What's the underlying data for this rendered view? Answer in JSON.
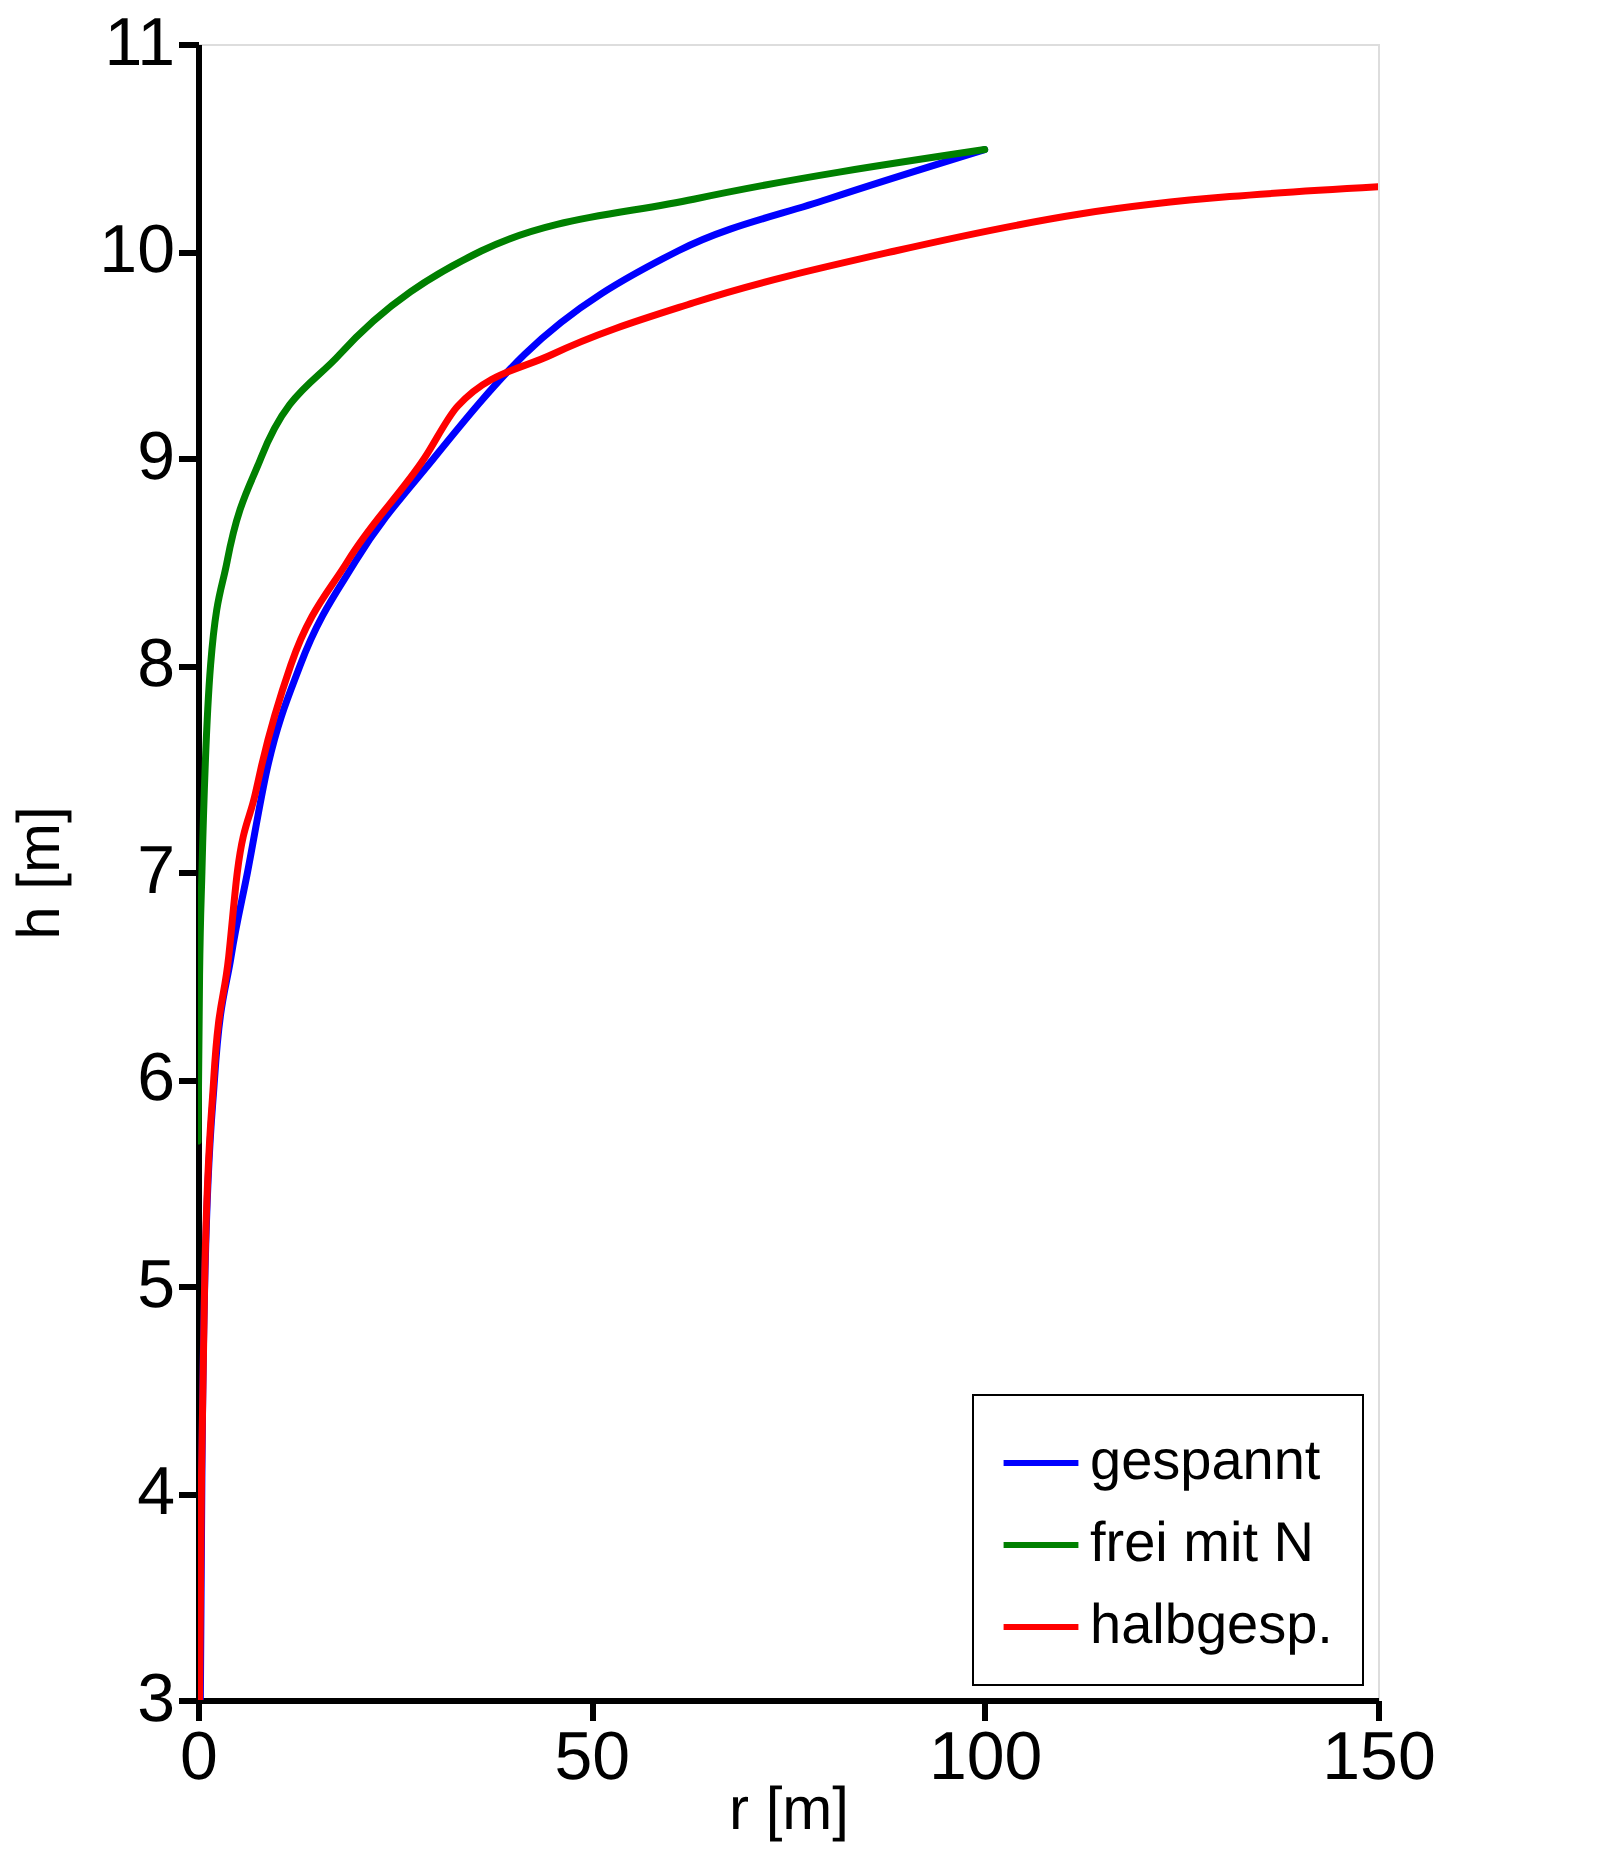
{
  "chart_data": {
    "type": "line",
    "xlabel": "r [m]",
    "ylabel": "h [m]",
    "xlim": [
      0,
      150
    ],
    "ylim": [
      3,
      11
    ],
    "xticks": [
      0,
      50,
      100,
      150
    ],
    "yticks": [
      3,
      4,
      5,
      6,
      7,
      8,
      9,
      10,
      11
    ],
    "grid": false,
    "legend": "bottom right",
    "line_style": "solid",
    "marker": "none",
    "series": [
      {
        "name": "gespannt",
        "color": "#0000ff",
        "x": [
          0.3,
          0.5,
          0.9,
          2.1,
          4.2,
          6.3,
          8.8,
          13,
          20,
          30,
          41.5,
          61,
          80,
          100
        ],
        "values": [
          3,
          4.1,
          5.08,
          6.0,
          6.59,
          7,
          7.5,
          8,
          8.5,
          9,
          9.5,
          10,
          10.25,
          10.49
        ]
      },
      {
        "name": "frei mit N",
        "color": "#008000",
        "x": [
          0,
          0.2,
          0.5,
          1.6,
          3.7,
          8,
          18,
          36,
          63,
          100
        ],
        "values": [
          5.7,
          6.5,
          7,
          8,
          8.5,
          9,
          9.5,
          10,
          10.25,
          10.49
        ]
      },
      {
        "name": "halbgesp.",
        "color": "#ff0000",
        "x": [
          0.2,
          0.45,
          0.87,
          2,
          3.9,
          5,
          7.3,
          8,
          11.8,
          19,
          28.8,
          33,
          45,
          63,
          88.6,
          112.3,
          150
        ],
        "values": [
          3,
          4.1,
          5.08,
          6.0,
          6.59,
          7,
          7.38,
          7.5,
          8,
          8.5,
          9,
          9.25,
          9.5,
          9.75,
          10,
          10.18,
          10.31
        ]
      }
    ]
  }
}
